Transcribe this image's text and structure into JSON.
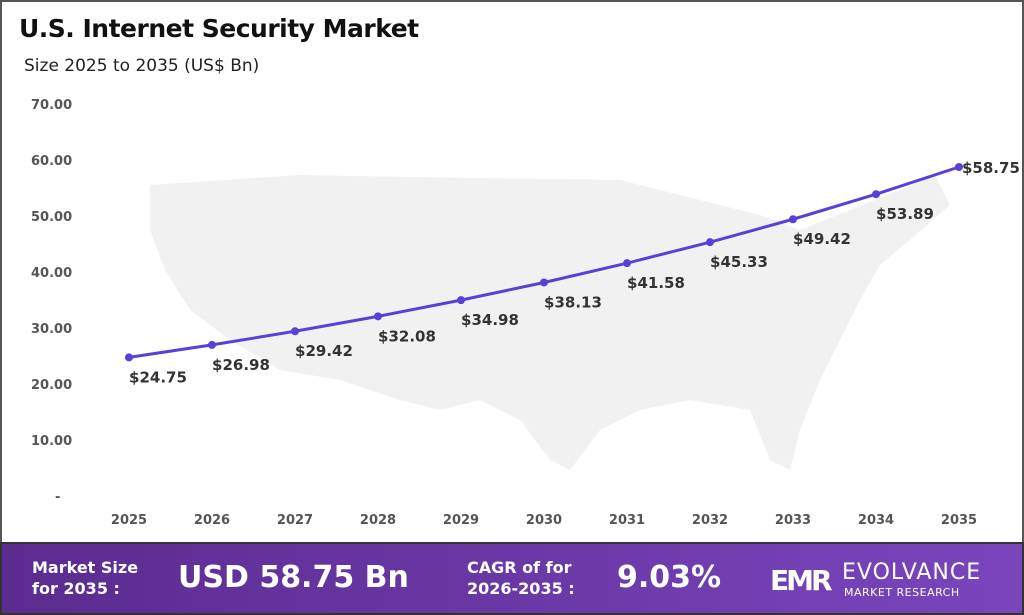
{
  "chart_data": {
    "type": "line",
    "title": "U.S. Internet Security Market",
    "subtitle": "Size 2025 to 2035 (US$ Bn)",
    "categories": [
      "2025",
      "2026",
      "2027",
      "2028",
      "2029",
      "2030",
      "2031",
      "2032",
      "2033",
      "2034",
      "2035"
    ],
    "values": [
      24.75,
      26.98,
      29.42,
      32.08,
      34.98,
      38.13,
      41.58,
      45.33,
      49.42,
      53.89,
      58.75
    ],
    "data_labels": [
      "$24.75",
      "$26.98",
      "$29.42",
      "$32.08",
      "$34.98",
      "$38.13",
      "$41.58",
      "$45.33",
      "$49.42",
      "$53.89",
      "$58.75"
    ],
    "y_ticks": [
      "-",
      "10.00",
      "20.00",
      "30.00",
      "40.00",
      "50.00",
      "60.00",
      "70.00"
    ],
    "ylim": [
      0,
      70
    ],
    "grid": false,
    "line_color": "#5b3fd6",
    "background": "faint gray U.S. map silhouette"
  },
  "footer": {
    "market_size_label_1": "Market Size",
    "market_size_label_2": "for 2035 :",
    "market_size_value": "USD 58.75 Bn",
    "cagr_label_1": "CAGR of for",
    "cagr_label_2": "2026-2035 :",
    "cagr_value": "9.03%",
    "logo_mark": "EMR",
    "logo_name": "EVOLVANCE",
    "logo_sub": "MARKET RESEARCH",
    "background_color": "#6a38a8"
  }
}
